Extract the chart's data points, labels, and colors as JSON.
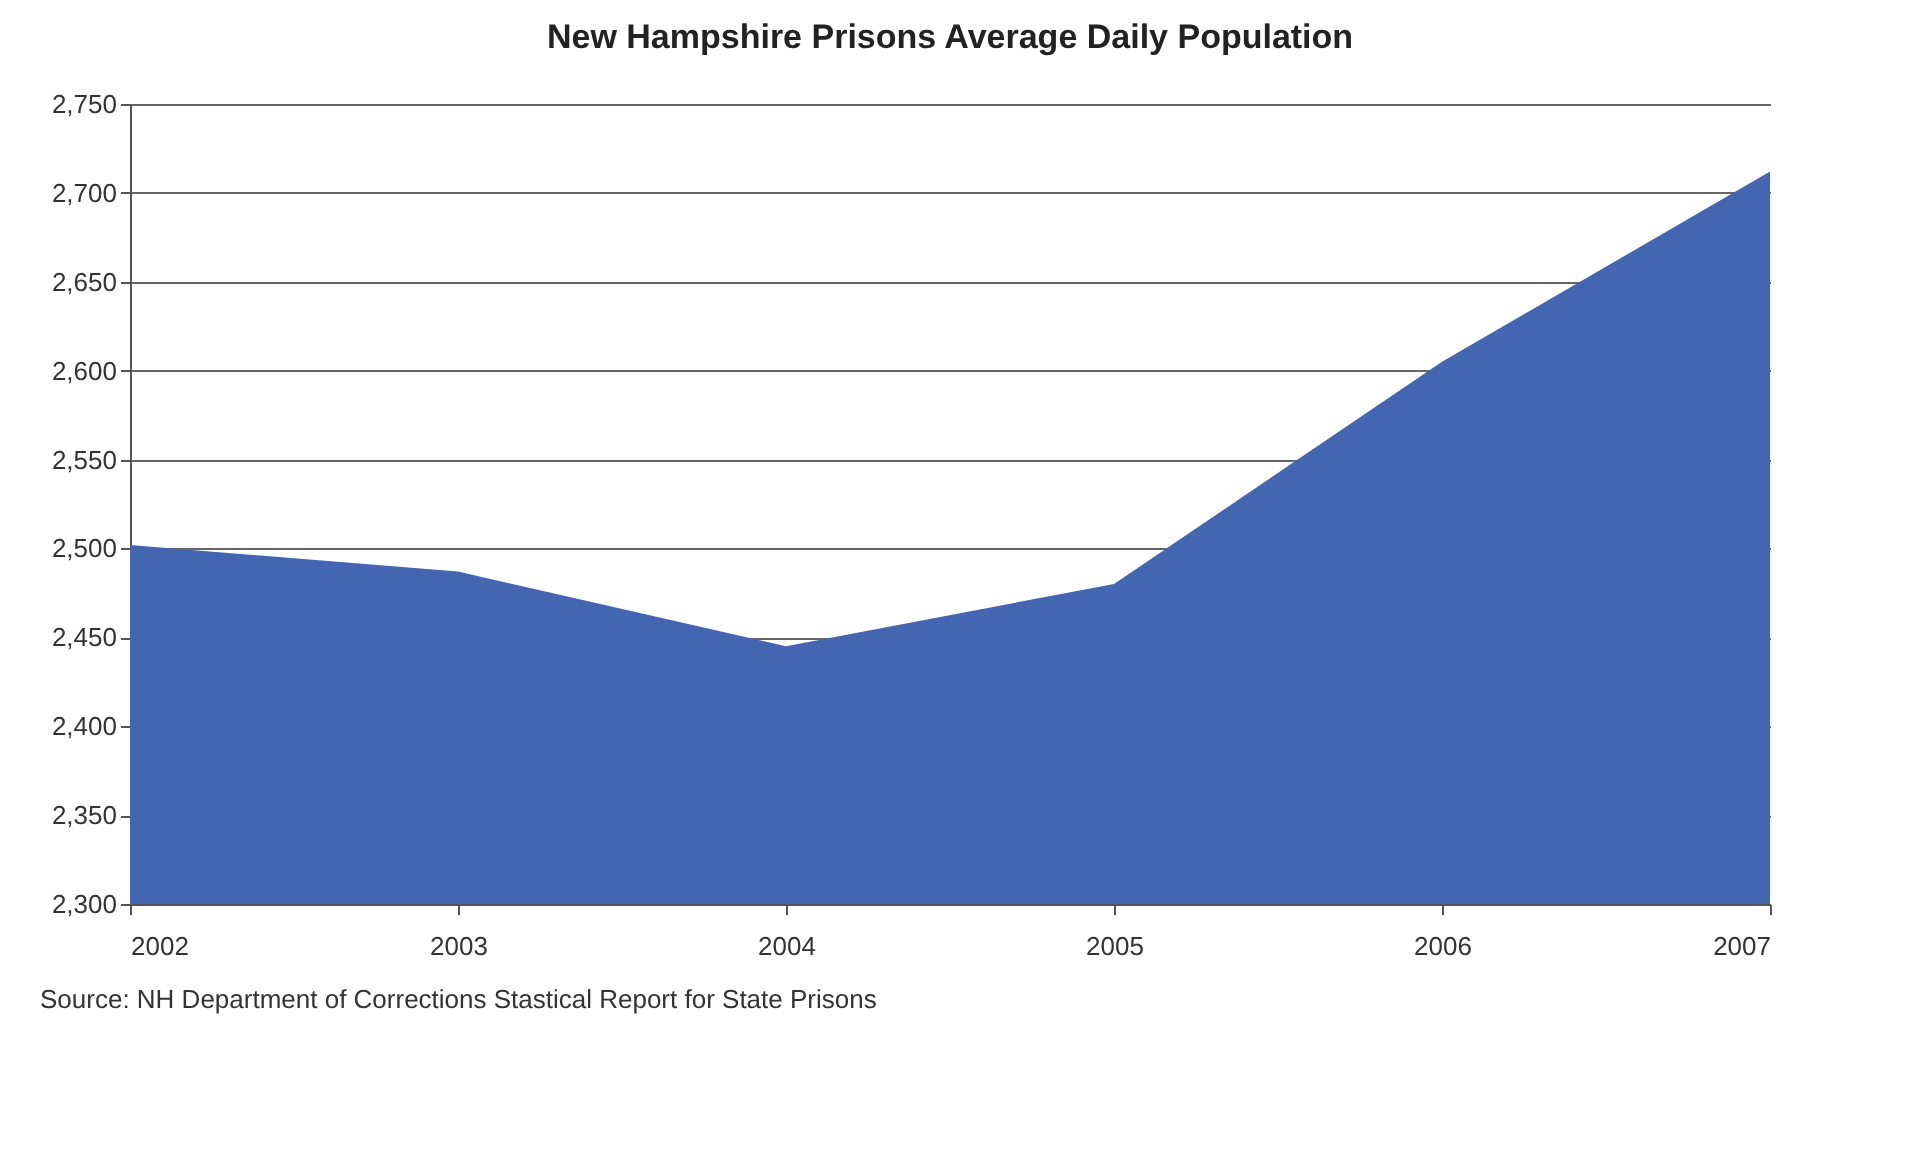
{
  "chart_data": {
    "type": "area",
    "title": "New Hampshire Prisons Average Daily Population",
    "categories": [
      "2002",
      "2003",
      "2004",
      "2005",
      "2006",
      "2007"
    ],
    "values": [
      2502,
      2487,
      2445,
      2480,
      2605,
      2712
    ],
    "color": "#4466b0",
    "ylim": [
      2300,
      2750
    ],
    "yticks": [
      {
        "value": 2300,
        "label": "2,300"
      },
      {
        "value": 2350,
        "label": "2,350"
      },
      {
        "value": 2400,
        "label": "2,400"
      },
      {
        "value": 2450,
        "label": "2,450"
      },
      {
        "value": 2500,
        "label": "2,500"
      },
      {
        "value": 2550,
        "label": "2,550"
      },
      {
        "value": 2600,
        "label": "2,600"
      },
      {
        "value": 2650,
        "label": "2,650"
      },
      {
        "value": 2700,
        "label": "2,700"
      },
      {
        "value": 2750,
        "label": "2,750"
      }
    ],
    "grid": "y",
    "annotations": [
      "Source: NH Department of Corrections Stastical Report for State Prisons"
    ]
  }
}
